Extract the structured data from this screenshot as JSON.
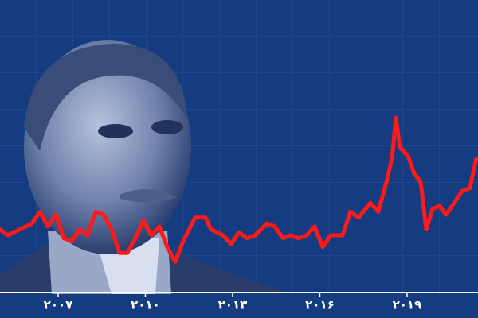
{
  "chart_data": {
    "type": "line",
    "x": [
      2005,
      2005.27,
      2005.68,
      2006.1,
      2006.37,
      2006.64,
      2006.92,
      2007.19,
      2007.47,
      2007.74,
      2008.01,
      2008.29,
      2008.56,
      2008.84,
      2009.11,
      2009.38,
      2009.66,
      2009.93,
      2010.21,
      2010.48,
      2010.75,
      2011.03,
      2011.3,
      2011.71,
      2012.07,
      2012.26,
      2012.67,
      2012.95,
      2013.22,
      2013.49,
      2013.77,
      2014.18,
      2014.45,
      2014.73,
      2015,
      2015.27,
      2015.55,
      2015.82,
      2016.1,
      2016.37,
      2016.78,
      2017.05,
      2017.33,
      2017.74,
      2018.01,
      2018.29,
      2018.48,
      2018.62,
      2018.75,
      2019.03,
      2019.25,
      2019.47,
      2019.66,
      2019.88,
      2020.12,
      2020.34,
      2020.62,
      2020.89,
      2021.16,
      2021.38
    ],
    "series": [
      {
        "color": "#ff1a1a",
        "values": [
          22,
          20,
          22,
          24,
          28,
          23,
          27,
          19,
          18,
          22,
          20,
          28,
          27,
          22,
          14,
          14,
          19,
          25,
          20,
          23,
          16,
          11,
          18,
          26,
          26,
          22,
          20,
          17,
          21,
          19,
          20,
          24,
          23,
          19,
          20,
          19,
          20,
          23,
          16,
          20,
          20,
          28,
          26,
          31,
          28,
          38,
          46,
          60,
          50,
          47,
          41,
          38,
          22,
          29,
          30,
          27,
          31,
          35,
          36,
          46
        ]
      }
    ],
    "xlim": [
      2005,
      2021.44
    ],
    "ylim": [
      0,
      100
    ],
    "xticks": [
      {
        "value": 2007,
        "label": "۲۰۰۷"
      },
      {
        "value": 2010,
        "label": "۲۰۱۰"
      },
      {
        "value": 2013,
        "label": "۲۰۱۳"
      },
      {
        "value": 2016,
        "label": "۲۰۱۶"
      },
      {
        "value": 2019,
        "label": "۲۰۱۹"
      }
    ]
  }
}
